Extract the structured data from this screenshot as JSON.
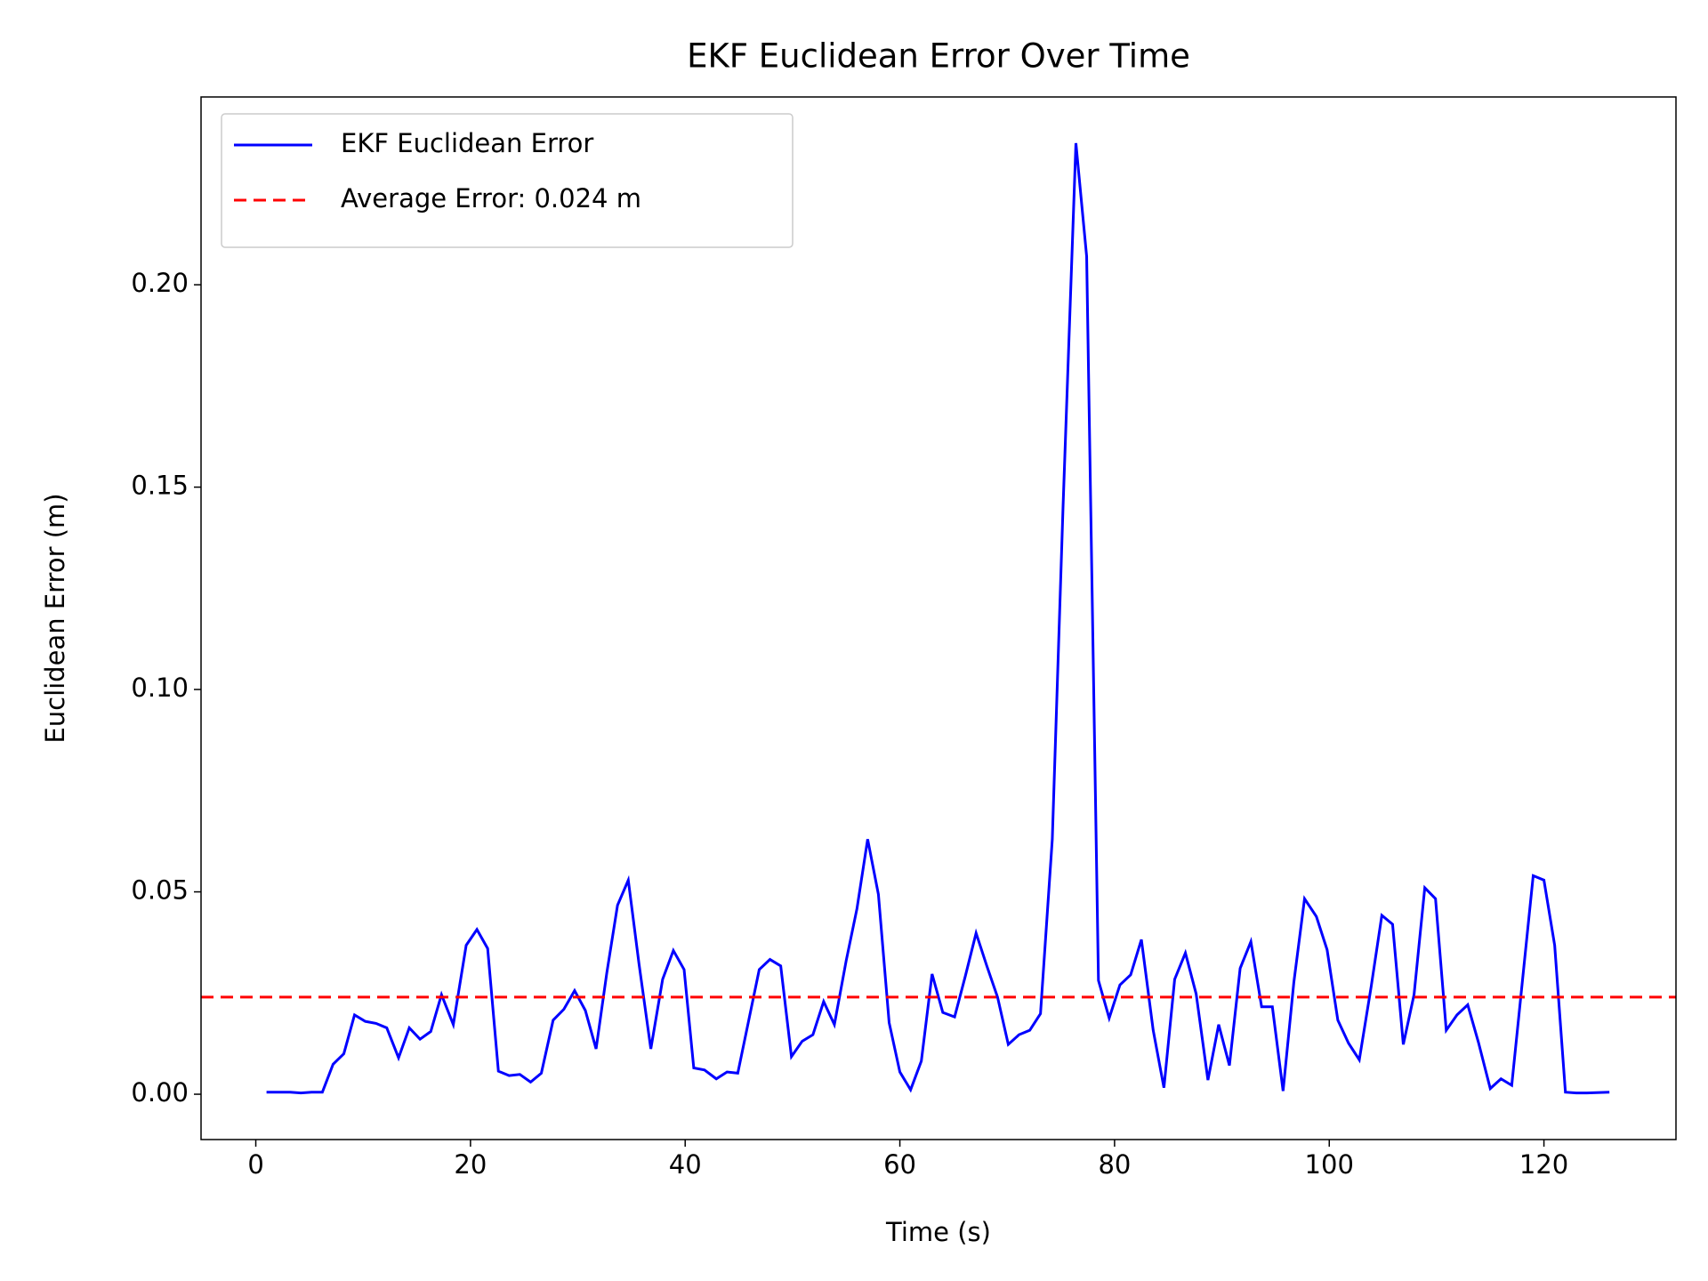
{
  "chart_data": {
    "type": "line",
    "title": "EKF Euclidean Error Over Time",
    "x_label": "Time (s)",
    "y_label": "Euclidean Error (m)",
    "x": [
      1.0,
      2.1,
      3.2,
      4.2,
      5.2,
      6.2,
      7.2,
      8.2,
      9.2,
      10.2,
      11.2,
      12.2,
      13.3,
      14.3,
      15.3,
      16.3,
      17.3,
      18.4,
      19.6,
      20.6,
      21.6,
      22.6,
      23.6,
      24.6,
      25.6,
      26.6,
      27.7,
      28.7,
      29.7,
      30.7,
      31.7,
      32.7,
      33.7,
      34.7,
      35.7,
      36.8,
      37.9,
      38.9,
      39.9,
      40.8,
      41.8,
      42.9,
      43.9,
      44.9,
      45.9,
      46.9,
      47.9,
      48.9,
      49.9,
      50.9,
      51.9,
      52.9,
      53.9,
      55.0,
      56.0,
      57.0,
      58.0,
      59.0,
      60.0,
      61.0,
      62.0,
      63.0,
      64.0,
      65.1,
      66.1,
      67.1,
      68.1,
      69.1,
      70.1,
      71.1,
      72.1,
      73.1,
      74.2,
      75.2,
      76.4,
      77.4,
      78.5,
      79.5,
      80.5,
      81.5,
      82.5,
      83.6,
      84.6,
      85.6,
      86.6,
      87.6,
      88.7,
      89.7,
      90.7,
      91.7,
      92.7,
      93.7,
      94.7,
      95.7,
      96.7,
      97.7,
      98.8,
      99.8,
      100.8,
      101.8,
      102.8,
      103.9,
      104.9,
      105.9,
      106.9,
      107.9,
      108.9,
      109.9,
      110.9,
      111.9,
      112.9,
      113.9,
      115.0,
      116.0,
      117.0,
      118.0,
      119.0,
      120.0,
      121.0,
      122.0,
      123.0,
      124.0,
      126.1
    ],
    "series": [
      {
        "name": "EKF Euclidean Error",
        "color": "#0000ff",
        "values": [
          0.0005,
          0.0005,
          0.0005,
          0.0003,
          0.0005,
          0.0005,
          0.0074,
          0.01,
          0.0196,
          0.018,
          0.0175,
          0.0164,
          0.009,
          0.0164,
          0.0136,
          0.0155,
          0.0246,
          0.0172,
          0.0368,
          0.0407,
          0.036,
          0.0057,
          0.0046,
          0.0049,
          0.003,
          0.0052,
          0.0183,
          0.021,
          0.0256,
          0.0207,
          0.0112,
          0.03,
          0.0467,
          0.0529,
          0.0322,
          0.0112,
          0.0284,
          0.0355,
          0.0308,
          0.0065,
          0.006,
          0.0038,
          0.0055,
          0.0052,
          0.018,
          0.0308,
          0.0333,
          0.0317,
          0.0093,
          0.0131,
          0.0147,
          0.0229,
          0.0172,
          0.033,
          0.0458,
          0.063,
          0.0494,
          0.0177,
          0.0055,
          0.0011,
          0.0082,
          0.0297,
          0.0202,
          0.0191,
          0.0292,
          0.0398,
          0.0317,
          0.024,
          0.0123,
          0.0147,
          0.0158,
          0.0199,
          0.063,
          0.145,
          0.235,
          0.207,
          0.0281,
          0.0188,
          0.027,
          0.0295,
          0.0382,
          0.0158,
          0.0016,
          0.0284,
          0.0349,
          0.0248,
          0.0035,
          0.0172,
          0.0071,
          0.0311,
          0.0377,
          0.0216,
          0.0216,
          0.0008,
          0.0276,
          0.0483,
          0.0439,
          0.0357,
          0.0183,
          0.0126,
          0.0085,
          0.0265,
          0.0442,
          0.042,
          0.0123,
          0.0246,
          0.051,
          0.0483,
          0.0158,
          0.0196,
          0.0221,
          0.0128,
          0.0014,
          0.0038,
          0.0022,
          0.0281,
          0.054,
          0.0529,
          0.0368,
          0.0005,
          0.0003,
          0.0003,
          0.0005
        ]
      }
    ],
    "hlines": [
      {
        "name": "Average Error: 0.024 m",
        "color": "#ff0000",
        "value": 0.024,
        "style": "dashed"
      }
    ],
    "xlim": [
      -5.1,
      132.3
    ],
    "ylim": [
      -0.0112,
      0.2464
    ],
    "xticks": [
      0,
      20,
      40,
      60,
      80,
      100,
      120
    ],
    "yticks": [
      {
        "value": 0,
        "label": "0.00"
      },
      {
        "value": 0.05,
        "label": "0.05"
      },
      {
        "value": 0.1,
        "label": "0.10"
      },
      {
        "value": 0.15,
        "label": "0.15"
      },
      {
        "value": 0.2,
        "label": "0.20"
      }
    ],
    "legend": "upper left"
  }
}
